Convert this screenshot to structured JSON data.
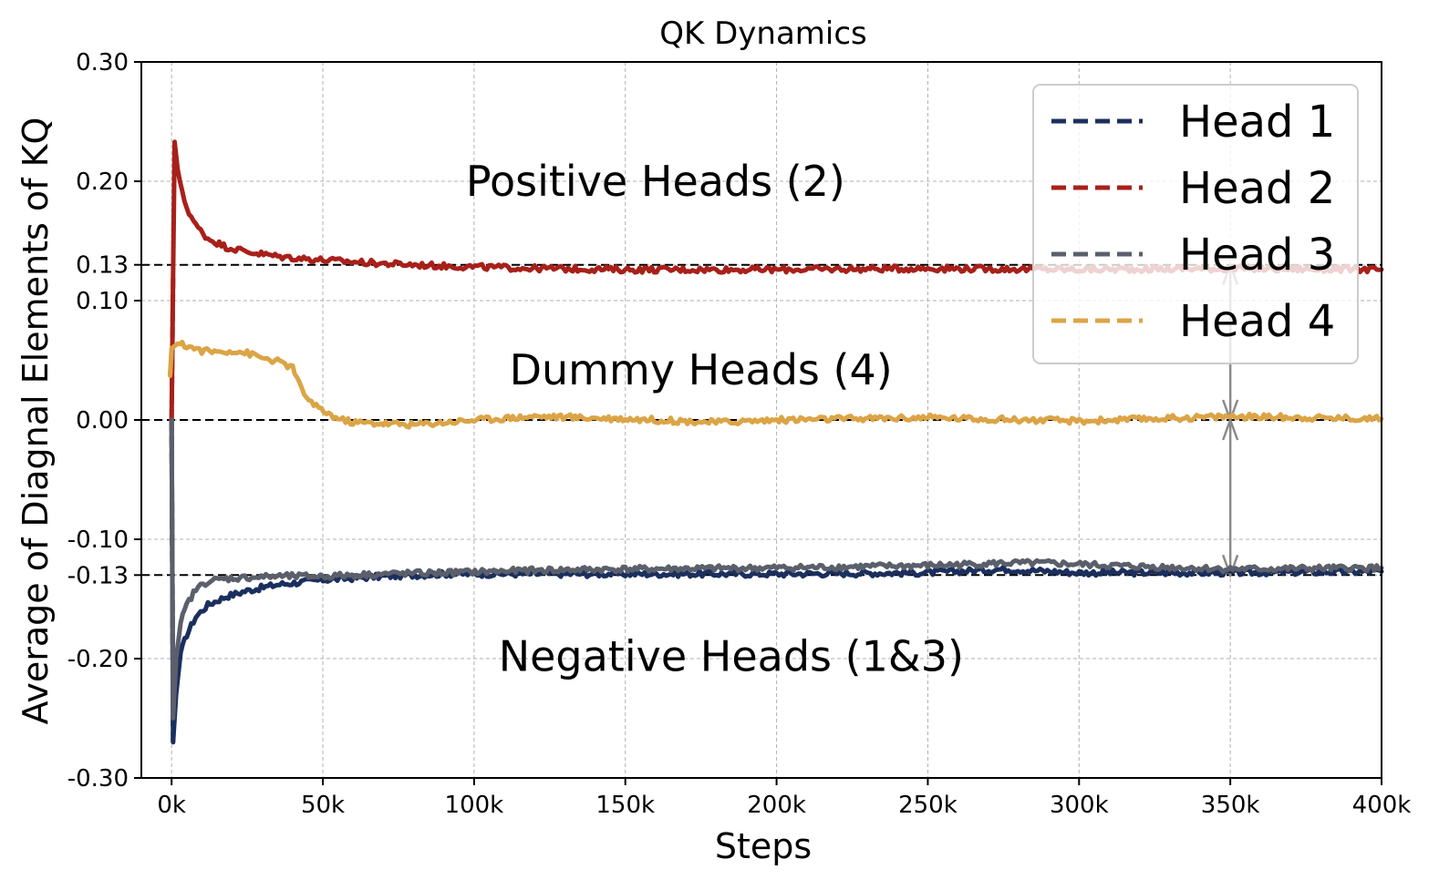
{
  "chart_data": {
    "type": "line",
    "title": "QK Dynamics",
    "xlabel": "Steps",
    "ylabel": "Average of Diagnal Elements of KQ",
    "xlim": [
      -10000,
      400000
    ],
    "ylim": [
      -0.3,
      0.3
    ],
    "x_ticks": [
      0,
      50000,
      100000,
      150000,
      200000,
      250000,
      300000,
      350000,
      400000
    ],
    "x_tick_labels": [
      "0k",
      "50k",
      "100k",
      "150k",
      "200k",
      "250k",
      "300k",
      "350k",
      "400k"
    ],
    "y_ticks": [
      -0.3,
      -0.2,
      -0.13,
      -0.1,
      0.0,
      0.1,
      0.13,
      0.2,
      0.3
    ],
    "y_tick_labels": [
      "-0.30",
      "-0.20",
      "-0.13",
      "-0.10",
      "0.00",
      "0.10",
      "0.13",
      "0.20",
      "0.30"
    ],
    "grid": true,
    "legend_position": "top-right",
    "reference_lines": [
      0.13,
      0.0,
      -0.13
    ],
    "annotations": [
      {
        "text": "Positive Heads (2)",
        "x": 160000,
        "y": 0.2
      },
      {
        "text": "Dummy Heads (4)",
        "x": 175000,
        "y": 0.042
      },
      {
        "text": "Negative Heads (1&3)",
        "x": 185000,
        "y": -0.198
      }
    ],
    "marker_x": 350000,
    "series": [
      {
        "name": "Head 1",
        "color": "#1b2f5e",
        "x": [
          0,
          500,
          1500,
          3000,
          5000,
          8000,
          12000,
          18000,
          25000,
          35000,
          50000,
          70000,
          90000,
          120000,
          150000,
          200000,
          250000,
          275000,
          300000,
          350000,
          400000
        ],
        "values": [
          0.0,
          -0.27,
          -0.23,
          -0.195,
          -0.18,
          -0.165,
          -0.155,
          -0.148,
          -0.143,
          -0.138,
          -0.134,
          -0.131,
          -0.129,
          -0.129,
          -0.129,
          -0.129,
          -0.128,
          -0.125,
          -0.128,
          -0.128,
          -0.127
        ]
      },
      {
        "name": "Head 2",
        "color": "#a8201a",
        "x": [
          0,
          500,
          1000,
          2000,
          3500,
          5000,
          8000,
          12000,
          18000,
          25000,
          35000,
          50000,
          70000,
          90000,
          120000,
          150000,
          200000,
          250000,
          300000,
          350000,
          400000
        ],
        "values": [
          0.0,
          0.12,
          0.233,
          0.21,
          0.19,
          0.178,
          0.163,
          0.152,
          0.145,
          0.141,
          0.137,
          0.134,
          0.131,
          0.129,
          0.127,
          0.126,
          0.126,
          0.127,
          0.126,
          0.127,
          0.126
        ]
      },
      {
        "name": "Head 3",
        "color": "#5b5f6b",
        "x": [
          0,
          500,
          1500,
          3000,
          5000,
          8000,
          12000,
          18000,
          25000,
          35000,
          50000,
          70000,
          90000,
          120000,
          150000,
          200000,
          250000,
          275000,
          290000,
          310000,
          350000,
          400000
        ],
        "values": [
          0.0,
          -0.25,
          -0.2,
          -0.17,
          -0.155,
          -0.142,
          -0.135,
          -0.133,
          -0.132,
          -0.131,
          -0.131,
          -0.129,
          -0.128,
          -0.126,
          -0.125,
          -0.124,
          -0.122,
          -0.12,
          -0.12,
          -0.122,
          -0.125,
          -0.124
        ]
      },
      {
        "name": "Head 4",
        "color": "#dba446",
        "x": [
          -500,
          0,
          2000,
          5000,
          10000,
          15000,
          20000,
          25000,
          30000,
          35000,
          40000,
          43000,
          47000,
          52000,
          55000,
          60000,
          70000,
          80000,
          100000,
          120000,
          150000,
          180000,
          200000,
          250000,
          300000,
          350000,
          400000
        ],
        "values": [
          0.037,
          0.06,
          0.064,
          0.062,
          0.058,
          0.057,
          0.058,
          0.056,
          0.052,
          0.049,
          0.044,
          0.025,
          0.012,
          0.005,
          0.001,
          -0.002,
          -0.003,
          -0.004,
          0.0,
          0.003,
          0.001,
          -0.002,
          0.0,
          0.002,
          -0.001,
          0.003,
          0.001
        ]
      }
    ]
  }
}
